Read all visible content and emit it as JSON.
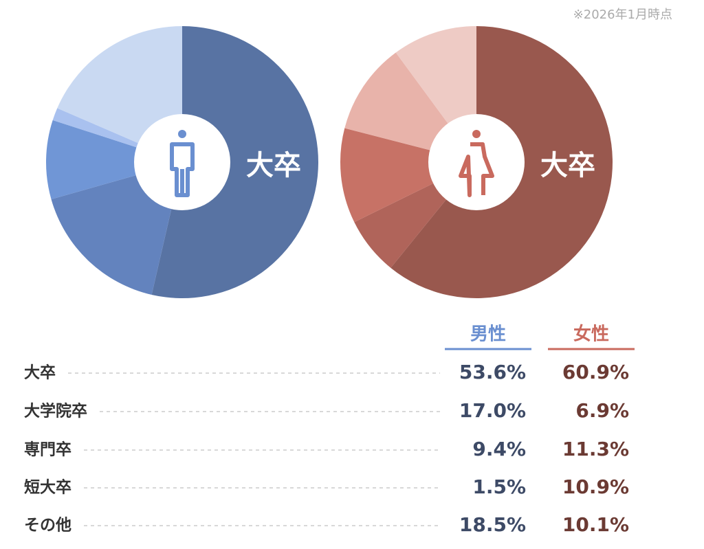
{
  "note": "※2026年1月時点",
  "chart_data": {
    "type": "pie",
    "categories": [
      "大卒",
      "大学院卒",
      "専門卒",
      "短大卒",
      "その他"
    ],
    "series": [
      {
        "name": "男性",
        "color": "#6a8fd0",
        "colors": [
          "#5873a3",
          "#6383be",
          "#7096d6",
          "#a9c1ef",
          "#c9d9f2"
        ],
        "values": [
          53.6,
          17.0,
          9.4,
          1.5,
          18.5
        ],
        "value_labels": [
          "53.6%",
          "17.0%",
          "9.4%",
          "1.5%",
          "18.5%"
        ]
      },
      {
        "name": "女性",
        "color": "#c96a5e",
        "colors": [
          "#99584e",
          "#b0645a",
          "#c77266",
          "#e8b3aa",
          "#eecbc5"
        ],
        "values": [
          60.9,
          6.9,
          11.3,
          10.9,
          10.1
        ],
        "value_labels": [
          "60.9%",
          "6.9%",
          "11.3%",
          "10.9%",
          "10.1%"
        ]
      }
    ]
  }
}
